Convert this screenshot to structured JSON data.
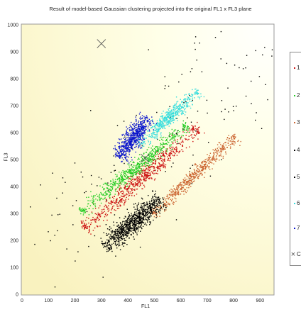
{
  "chart_data": {
    "type": "scatter",
    "title": "Result of model-based Gaussian clustering projected into the original FL1 x FL3 plane",
    "xlabel": "FL1",
    "ylabel": "FL3",
    "xlim": [
      0,
      950
    ],
    "ylim": [
      0,
      1000
    ],
    "x_ticks": [
      "0",
      "100",
      "200",
      "300",
      "400",
      "500",
      "600",
      "700",
      "800",
      "900"
    ],
    "y_ticks": [
      "0",
      "100",
      "200",
      "300",
      "400",
      "500",
      "600",
      "700",
      "800",
      "900",
      "1000"
    ],
    "legend_position": "right",
    "series": [
      {
        "name": "1",
        "color": "#cc1111",
        "marker": "dot",
        "line": [
          [
            240,
            250
          ],
          [
            660,
            610
          ]
        ],
        "spread": 14,
        "count": 700
      },
      {
        "name": "2",
        "color": "#22cc22",
        "marker": "dot",
        "line": [
          [
            230,
            310
          ],
          [
            620,
            620
          ]
        ],
        "spread": 12,
        "count": 650
      },
      {
        "name": "3",
        "color": "#cc6633",
        "marker": "dot",
        "line": [
          [
            500,
            300
          ],
          [
            800,
            580
          ]
        ],
        "spread": 11,
        "count": 550
      },
      {
        "name": "4",
        "color": "#000000",
        "marker": "dot",
        "line": [
          [
            320,
            180
          ],
          [
            520,
            350
          ]
        ],
        "spread": 18,
        "count": 900
      },
      {
        "name": "5",
        "color": "#000000",
        "marker": "dot",
        "line": [
          [
            100,
            200
          ],
          [
            900,
            900
          ]
        ],
        "spread": 120,
        "count": 160
      },
      {
        "name": "6",
        "color": "#33dddd",
        "marker": "dot",
        "line": [
          [
            450,
            560
          ],
          [
            660,
            750
          ]
        ],
        "spread": 13,
        "count": 500
      },
      {
        "name": "7",
        "color": "#0a14cc",
        "marker": "dot",
        "line": [
          [
            370,
            510
          ],
          [
            470,
            650
          ]
        ],
        "spread": 16,
        "count": 650
      },
      {
        "name": "C",
        "color": "#555555",
        "marker": "x",
        "points": [
          [
            465,
            505
          ],
          [
            300,
            930
          ]
        ]
      }
    ]
  }
}
